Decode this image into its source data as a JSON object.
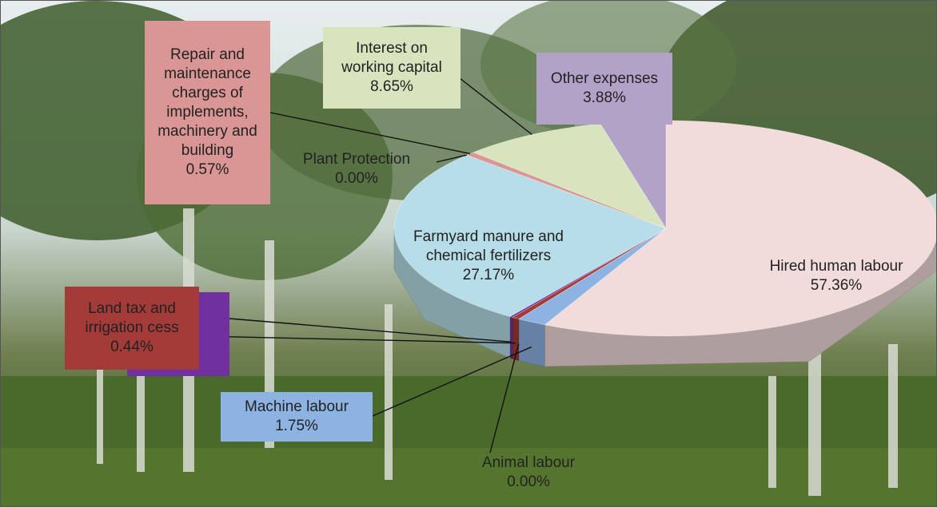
{
  "chart_data": {
    "type": "pie3d",
    "categories": [
      "Hired human labour",
      "Machine labour",
      "Animal labour",
      "Land tax and irrigation cess",
      null,
      "Farmyard manure and chemical fertilizers",
      "Plant Protection",
      "Repair and maintenance charges of implements, machinery and building",
      "Interest on working capital",
      "Other expenses"
    ],
    "values": [
      57.36,
      1.75,
      0.0,
      0.44,
      0.18,
      27.17,
      0.0,
      0.57,
      8.65,
      3.88
    ],
    "value_labels": [
      "57.36%",
      "1.75%",
      "0.00%",
      "0.44%",
      null,
      "27.17%",
      "0.00%",
      "0.57%",
      "8.65%",
      "3.88%"
    ],
    "colors": [
      "#f2dcdb",
      "#8db3e2",
      "#7f7f7f",
      "#a33b38",
      "#7030a0",
      "#b7dee8",
      "#4f81bd",
      "#d99694",
      "#d7e4bd",
      "#b3a2c7"
    ]
  }
}
